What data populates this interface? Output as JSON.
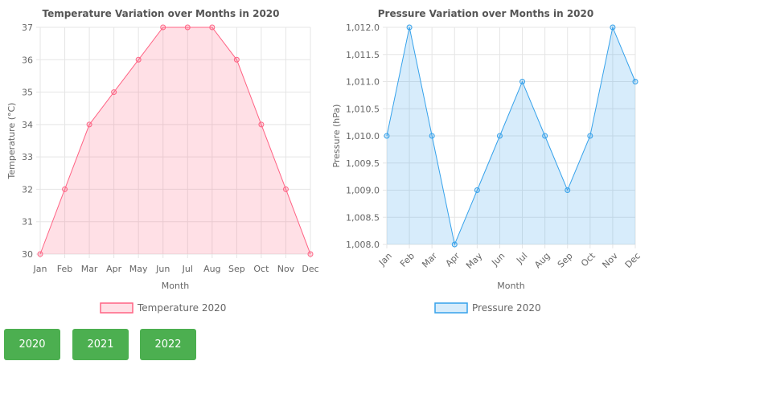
{
  "colors": {
    "grid": "#e5e5e5",
    "axis_text": "#666666",
    "title_text": "#555555",
    "button_bg": "#4caf50",
    "button_text": "#ffffff"
  },
  "chart_data": [
    {
      "type": "area",
      "title": "Temperature Variation over Months in 2020",
      "xlabel": "Month",
      "ylabel": "Temperature (°C)",
      "categories": [
        "Jan",
        "Feb",
        "Mar",
        "Apr",
        "May",
        "Jun",
        "Jul",
        "Aug",
        "Sep",
        "Oct",
        "Nov",
        "Dec"
      ],
      "series": [
        {
          "name": "Temperature 2020",
          "values": [
            30,
            32,
            34,
            35,
            36,
            37,
            37,
            37,
            36,
            34,
            32,
            30
          ]
        }
      ],
      "ylim": [
        30,
        37
      ],
      "yticks": [
        "30",
        "31",
        "32",
        "33",
        "34",
        "35",
        "36",
        "37"
      ],
      "line_color": "#ff6384",
      "fill_color": "rgba(255,99,132,0.2)",
      "grid": true,
      "legend": "bottom"
    },
    {
      "type": "area",
      "title": "Pressure Variation over Months in 2020",
      "xlabel": "Month",
      "ylabel": "Pressure (hPa)",
      "categories": [
        "Jan",
        "Feb",
        "Mar",
        "Apr",
        "May",
        "Jun",
        "Jul",
        "Aug",
        "Sep",
        "Oct",
        "Nov",
        "Dec"
      ],
      "series": [
        {
          "name": "Pressure 2020",
          "values": [
            1010,
            1012,
            1010,
            1008,
            1009,
            1010,
            1011,
            1010,
            1009,
            1010,
            1012,
            1011
          ]
        }
      ],
      "ylim": [
        1008,
        1012
      ],
      "yticks": [
        "1,008.0",
        "1,008.5",
        "1,009.0",
        "1,009.5",
        "1,010.0",
        "1,010.5",
        "1,011.0",
        "1,011.5",
        "1,012.0"
      ],
      "line_color": "#36a2eb",
      "fill_color": "rgba(54,162,235,0.2)",
      "grid": true,
      "legend": "bottom"
    }
  ],
  "buttons": [
    {
      "label": "2020"
    },
    {
      "label": "2021"
    },
    {
      "label": "2022"
    }
  ]
}
